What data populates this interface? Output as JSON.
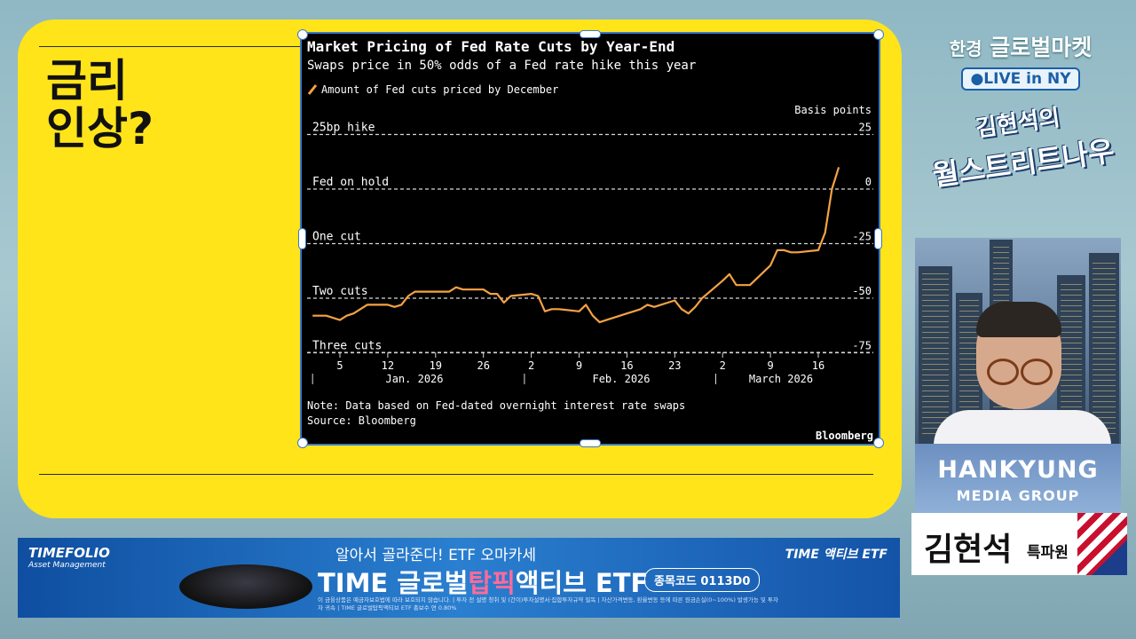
{
  "slide": {
    "headline": "금리\n인상?"
  },
  "chart_data": {
    "type": "line",
    "title": "Market Pricing of Fed Rate Cuts by Year-End",
    "subtitle": "Swaps price in 50% odds of a Fed rate hike this year",
    "legend": "Amount of Fed cuts priced by December",
    "yunit": "Basis points",
    "ylim": [
      -80,
      30
    ],
    "yticks": [
      25,
      0,
      -25,
      -50,
      -75
    ],
    "reference_lines": [
      {
        "value": 25,
        "label": "25bp hike"
      },
      {
        "value": 0,
        "label": "Fed on hold"
      },
      {
        "value": -25,
        "label": "One cut"
      },
      {
        "value": -50,
        "label": "Two cuts"
      },
      {
        "value": -75,
        "label": "Three cuts"
      }
    ],
    "xticks": [
      "5",
      "12",
      "19",
      "26",
      "2",
      "9",
      "16",
      "23",
      "2",
      "9",
      "16"
    ],
    "months": [
      "Jan. 2026",
      "Feb. 2026",
      "March 2026"
    ],
    "note": "Note: Data based on Fed-dated overnight interest rate swaps",
    "source": "Source: Bloomberg",
    "credit": "Bloomberg",
    "line_color": "#f5a243",
    "x": [
      "2026-01-01",
      "2026-01-03",
      "2026-01-05",
      "2026-01-06",
      "2026-01-07",
      "2026-01-08",
      "2026-01-09",
      "2026-01-12",
      "2026-01-13",
      "2026-01-14",
      "2026-01-15",
      "2026-01-16",
      "2026-01-19",
      "2026-01-20",
      "2026-01-21",
      "2026-01-22",
      "2026-01-23",
      "2026-01-26",
      "2026-01-27",
      "2026-01-28",
      "2026-01-29",
      "2026-01-30",
      "2026-02-02",
      "2026-02-03",
      "2026-02-04",
      "2026-02-05",
      "2026-02-06",
      "2026-02-09",
      "2026-02-10",
      "2026-02-11",
      "2026-02-12",
      "2026-02-13",
      "2026-02-16",
      "2026-02-17",
      "2026-02-18",
      "2026-02-19",
      "2026-02-20",
      "2026-02-23",
      "2026-02-24",
      "2026-02-25",
      "2026-02-26",
      "2026-02-27",
      "2026-03-02",
      "2026-03-03",
      "2026-03-04",
      "2026-03-05",
      "2026-03-06",
      "2026-03-09",
      "2026-03-10",
      "2026-03-11",
      "2026-03-12",
      "2026-03-13",
      "2026-03-16",
      "2026-03-17",
      "2026-03-18",
      "2026-03-19"
    ],
    "values": [
      -58,
      -58,
      -60,
      -58,
      -57,
      -55,
      -53,
      -53,
      -54,
      -53,
      -49,
      -47,
      -47,
      -47,
      -47,
      -45,
      -46,
      -46,
      -48,
      -48,
      -52,
      -49,
      -48,
      -49,
      -56,
      -55,
      -55,
      -56,
      -53,
      -58,
      -61,
      -60,
      -57,
      -56,
      -55,
      -53,
      -54,
      -51,
      -55,
      -57,
      -54,
      -50,
      -42,
      -39,
      -44,
      -44,
      -44,
      -35,
      -28,
      -28,
      -29,
      -29,
      -28,
      -20,
      0,
      10
    ]
  },
  "branding": {
    "hk": "한경",
    "channel": "글로벌마켓",
    "live": "●LIVE in NY",
    "show_line1": "김현석의",
    "show_line2": "월스트리트나우"
  },
  "anchor": {
    "org_line1": "HANKYUNG",
    "org_line2": "MEDIA GROUP",
    "name": "김현석",
    "title": "특파원"
  },
  "ad": {
    "company": "TIMEFOLIO",
    "company_sub": "Asset Management",
    "subhead": "알아서 골라준다! ETF 오마카세",
    "main_pre": "TIME 글로벌",
    "main_pink": "탑픽",
    "main_post": "액티브 ETF",
    "code": "종목코드 0113D0",
    "brand": "TIME 액티브 ETF",
    "fine": "이 금융상품은 예금자보호법에 따라 보호되지 않습니다. | 투자 전 설명 청취 및 (간이)투자설명서·집합투자규약 필독 | 자산가격변동, 환율변동 등에 따른 원금손실(0~100%) 발생가능 및 투자자 귀속 | TIME 글로벌탑픽액티브 ETF 총보수 연 0.80%"
  }
}
